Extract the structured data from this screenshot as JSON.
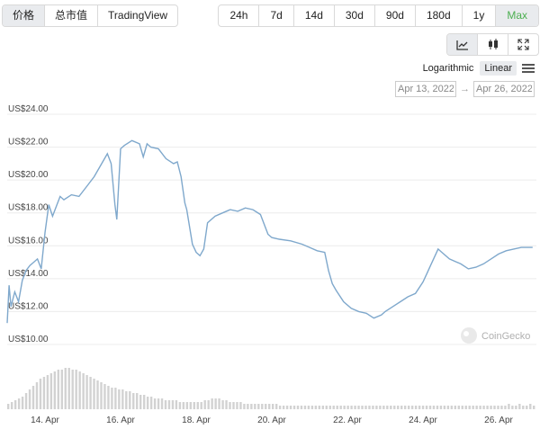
{
  "tabs": [
    {
      "label": "价格",
      "active": true
    },
    {
      "label": "总市值",
      "active": false
    },
    {
      "label": "TradingView",
      "active": false
    }
  ],
  "ranges": [
    {
      "label": "24h",
      "active": false
    },
    {
      "label": "7d",
      "active": false
    },
    {
      "label": "14d",
      "active": false
    },
    {
      "label": "30d",
      "active": false
    },
    {
      "label": "90d",
      "active": false
    },
    {
      "label": "180d",
      "active": false
    },
    {
      "label": "1y",
      "active": false
    },
    {
      "label": "Max",
      "active": true
    }
  ],
  "chart_types": [
    {
      "icon": "line-chart-icon",
      "active": true
    },
    {
      "icon": "candlestick-icon",
      "active": false
    },
    {
      "icon": "fullscreen-icon",
      "active": false
    }
  ],
  "scale": {
    "logarithmic": "Logarithmic",
    "linear": "Linear",
    "active": "Linear"
  },
  "date_range": {
    "from": "Apr 13, 2022",
    "to": "Apr 26, 2022",
    "arrow": "→"
  },
  "watermark": "CoinGecko",
  "colors": {
    "line": "#7fa8cc",
    "volume": "#d2d2d2",
    "grid": "#ececec",
    "active_range": "#4caf50",
    "active_bg": "#e9ebee"
  },
  "chart_data": {
    "type": "line",
    "y_ticks": [
      "US$24.00",
      "US$22.00",
      "US$20.00",
      "US$18.00",
      "US$16.00",
      "US$14.00",
      "US$12.00",
      "US$10.00"
    ],
    "y_tick_values": [
      24,
      22,
      20,
      18,
      16,
      14,
      12,
      10
    ],
    "ylim": [
      10,
      24
    ],
    "x_ticks": [
      "14. Apr",
      "16. Apr",
      "18. Apr",
      "20. Apr",
      "22. Apr",
      "24. Apr",
      "26. Apr"
    ],
    "x_tick_values": [
      14,
      16,
      18,
      20,
      22,
      24,
      26
    ],
    "xlim": [
      13.0,
      27.0
    ],
    "grid": true,
    "series": [
      {
        "x": [
          13.0,
          13.05,
          13.1,
          13.2,
          13.3,
          13.4,
          13.5,
          13.6,
          13.7,
          13.8,
          13.9,
          14.0,
          14.1,
          14.2,
          14.3,
          14.4,
          14.5,
          14.7,
          14.9,
          15.1,
          15.3,
          15.5,
          15.65,
          15.75,
          15.85,
          15.9,
          16.0,
          16.1,
          16.3,
          16.5,
          16.6,
          16.7,
          16.8,
          17.0,
          17.2,
          17.4,
          17.5,
          17.6,
          17.7,
          17.75,
          17.8,
          17.9,
          18.0,
          18.1,
          18.2,
          18.3,
          18.5,
          18.7,
          18.9,
          19.1,
          19.3,
          19.5,
          19.7,
          19.9,
          20.0,
          20.2,
          20.5,
          20.8,
          21.0,
          21.2,
          21.4,
          21.5,
          21.6,
          21.7,
          21.9,
          22.1,
          22.3,
          22.5,
          22.7,
          22.9,
          23.0,
          23.2,
          23.4,
          23.6,
          23.8,
          24.0,
          24.1,
          24.2,
          24.3,
          24.4,
          24.5,
          24.7,
          25.0,
          25.2,
          25.4,
          25.6,
          25.8,
          26.0,
          26.2,
          26.4,
          26.6,
          26.8,
          26.9
        ],
        "y": [
          11.3,
          13.6,
          12.3,
          13.2,
          12.6,
          13.9,
          14.5,
          14.8,
          15.0,
          15.2,
          14.6,
          16.8,
          18.5,
          17.8,
          18.4,
          19.0,
          18.8,
          19.1,
          19.0,
          19.6,
          20.2,
          21.0,
          21.6,
          21.0,
          18.5,
          17.6,
          21.9,
          22.1,
          22.4,
          22.2,
          21.4,
          22.2,
          22.0,
          21.9,
          21.3,
          21.0,
          21.1,
          20.2,
          18.6,
          18.2,
          17.5,
          16.1,
          15.6,
          15.4,
          15.8,
          17.4,
          17.8,
          18.0,
          18.2,
          18.1,
          18.3,
          18.2,
          17.9,
          16.7,
          16.5,
          16.4,
          16.3,
          16.1,
          15.9,
          15.7,
          15.6,
          14.5,
          13.7,
          13.3,
          12.6,
          12.2,
          12.0,
          11.9,
          11.6,
          11.8,
          12.0,
          12.3,
          12.6,
          12.9,
          13.1,
          13.8,
          14.3,
          14.8,
          15.3,
          15.8,
          15.6,
          15.2,
          14.9,
          14.6,
          14.7,
          14.9,
          15.2,
          15.5,
          15.7,
          15.8,
          15.9,
          15.9,
          15.9
        ]
      }
    ],
    "volume": [
      3,
      4,
      5,
      6,
      7,
      9,
      11,
      13,
      15,
      17,
      18,
      19,
      20,
      21,
      22,
      22,
      23,
      23,
      22,
      22,
      21,
      20,
      19,
      18,
      17,
      16,
      15,
      14,
      13,
      12,
      12,
      11,
      11,
      10,
      10,
      9,
      9,
      8,
      8,
      7,
      7,
      6,
      6,
      6,
      5,
      5,
      5,
      5,
      4,
      4,
      4,
      4,
      4,
      4,
      4,
      5,
      5,
      6,
      6,
      6,
      5,
      5,
      4,
      4,
      4,
      4,
      3,
      3,
      3,
      3,
      3,
      3,
      3,
      3,
      3,
      3,
      2,
      2,
      2,
      2,
      2,
      2,
      2,
      2,
      2,
      2,
      2,
      2,
      2,
      2,
      2,
      2,
      2,
      2,
      2,
      2,
      2,
      2,
      2,
      2,
      2,
      2,
      2,
      2,
      2,
      2,
      2,
      2,
      2,
      2,
      2,
      2,
      2,
      2,
      2,
      2,
      2,
      2,
      2,
      2,
      2,
      2,
      2,
      2,
      2,
      2,
      2,
      2,
      2,
      2,
      2,
      2,
      2,
      2,
      2,
      2,
      2,
      2,
      2,
      2,
      3,
      2,
      2,
      3,
      2,
      2,
      3,
      2
    ]
  }
}
